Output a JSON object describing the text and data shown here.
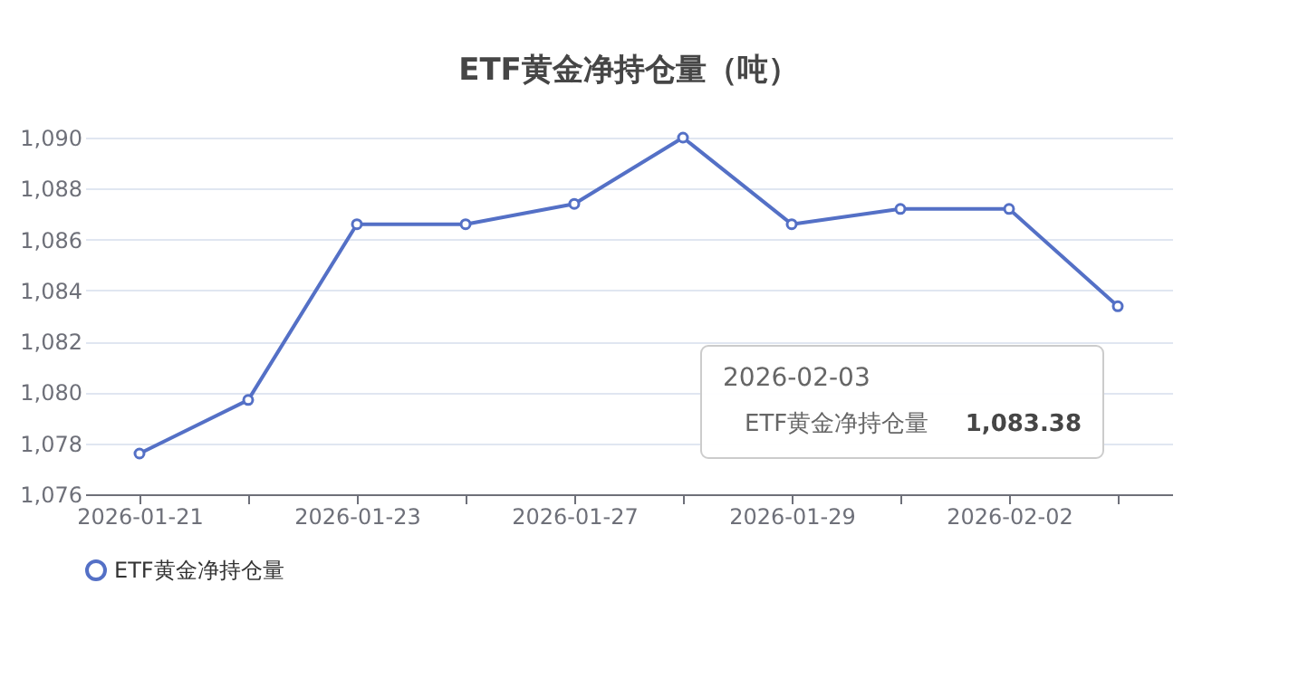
{
  "chart_data": {
    "type": "line",
    "title": "ETF黄金净持仓量（吨）",
    "categories": [
      "2026-01-21",
      null,
      "2026-01-23",
      null,
      "2026-01-27",
      null,
      "2026-01-29",
      null,
      "2026-02-02",
      null
    ],
    "series": [
      {
        "name": "ETF黄金净持仓量",
        "color": "#5470c6",
        "values": [
          1077.6,
          1079.7,
          1086.6,
          1086.6,
          1087.4,
          1090.0,
          1086.6,
          1087.2,
          1087.2,
          1083.38
        ]
      }
    ],
    "ylim": [
      1076,
      1090
    ],
    "yticks": [
      {
        "value": 1076,
        "label": "1,076"
      },
      {
        "value": 1078,
        "label": "1,078"
      },
      {
        "value": 1080,
        "label": "1,080"
      },
      {
        "value": 1082,
        "label": "1,082"
      },
      {
        "value": 1084,
        "label": "1,084"
      },
      {
        "value": 1086,
        "label": "1,086"
      },
      {
        "value": 1088,
        "label": "1,088"
      },
      {
        "value": 1090,
        "label": "1,090"
      }
    ],
    "annotations": [
      "2026-02-03",
      "ETF黄金净持仓量",
      "1,083.38"
    ],
    "grid": "y",
    "legend": "bottom",
    "marker": "circle"
  }
}
